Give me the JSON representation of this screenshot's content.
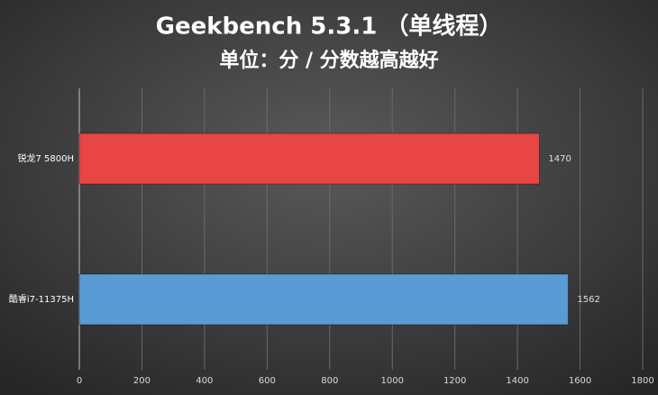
{
  "chart_data": {
    "type": "bar",
    "orientation": "horizontal",
    "title": "Geekbench 5.3.1 （单线程）",
    "subtitle": "单位：分 / 分数越高越好",
    "categories": [
      "锐龙7 5800H",
      "酷睿i7-11375H"
    ],
    "values": [
      1470,
      1562
    ],
    "colors": [
      "#e84545",
      "#5b9bd5"
    ],
    "xlim": [
      0,
      1800
    ],
    "xticks": [
      0,
      200,
      400,
      600,
      800,
      1000,
      1200,
      1400,
      1600,
      1800
    ],
    "grid": true
  }
}
